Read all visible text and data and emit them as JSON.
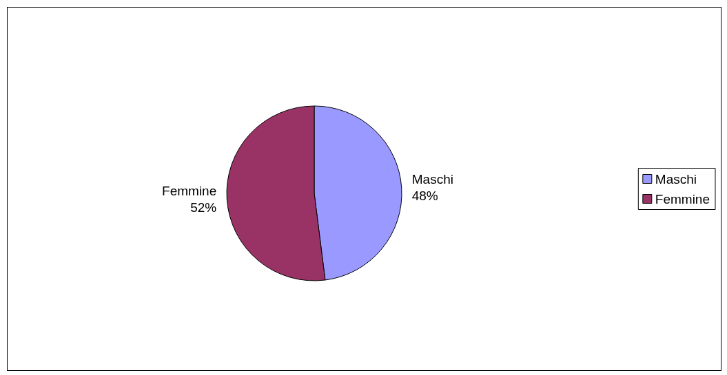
{
  "chart_data": {
    "type": "pie",
    "categories": [
      "Maschi",
      "Femmine"
    ],
    "values": [
      48,
      52
    ],
    "colors": [
      "#9999ff",
      "#993366"
    ],
    "value_labels": [
      "48%",
      "52%"
    ],
    "legend": "right"
  }
}
